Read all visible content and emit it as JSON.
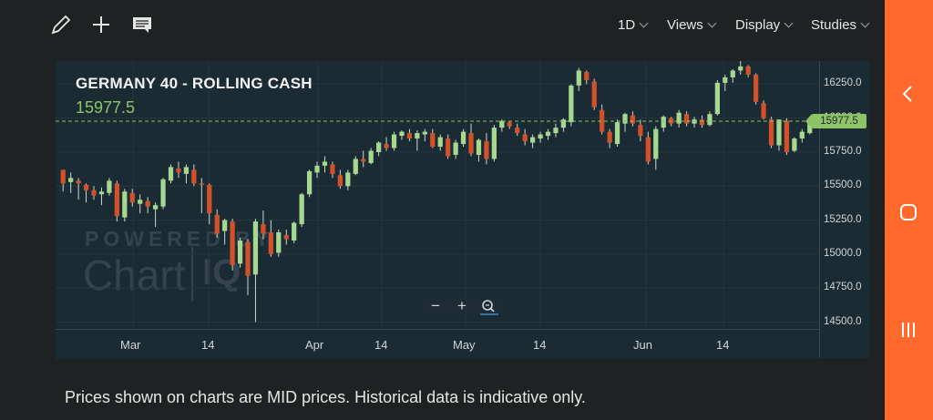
{
  "toolbar": {
    "icons": [
      "pencil-icon",
      "plus-icon",
      "comment-icon"
    ],
    "menus": [
      "1D",
      "Views",
      "Display",
      "Studies"
    ]
  },
  "chart": {
    "title": "GERMANY 40 - ROLLING CASH",
    "current_price": "15977.5",
    "price_tag": "15977.5",
    "watermark_top": "POWERED BY",
    "watermark_main": "Chart",
    "watermark_iq": "IQ",
    "zoom": {
      "minus": "−",
      "plus": "+"
    }
  },
  "chart_data": {
    "type": "candlestick",
    "title": "GERMANY 40 - ROLLING CASH",
    "y_ticks": [
      "16250.0",
      "16000.0",
      "15750.0",
      "15500.0",
      "15250.0",
      "15000.0",
      "14750.0",
      "14500.0"
    ],
    "x_ticks": [
      "Mar",
      "14",
      "Apr",
      "14",
      "May",
      "14",
      "Jun",
      "14"
    ],
    "ylim": [
      14450,
      16420
    ],
    "current_line": 15977.5,
    "candles": [
      [
        15620,
        15620,
        15460,
        15520
      ],
      [
        15530,
        15600,
        15450,
        15560
      ],
      [
        15540,
        15560,
        15400,
        15520
      ],
      [
        15510,
        15520,
        15380,
        15470
      ],
      [
        15470,
        15500,
        15400,
        15430
      ],
      [
        15440,
        15490,
        15360,
        15460
      ],
      [
        15450,
        15560,
        15430,
        15540
      ],
      [
        15520,
        15540,
        15240,
        15280
      ],
      [
        15270,
        15480,
        15240,
        15460
      ],
      [
        15450,
        15480,
        15350,
        15380
      ],
      [
        15370,
        15440,
        15300,
        15400
      ],
      [
        15390,
        15420,
        15300,
        15350
      ],
      [
        15330,
        15380,
        15200,
        15360
      ],
      [
        15350,
        15560,
        15330,
        15550
      ],
      [
        15540,
        15660,
        15520,
        15640
      ],
      [
        15630,
        15680,
        15560,
        15600
      ],
      [
        15590,
        15660,
        15520,
        15640
      ],
      [
        15620,
        15660,
        15500,
        15520
      ],
      [
        15520,
        15560,
        15300,
        15510
      ],
      [
        15510,
        15520,
        15220,
        15300
      ],
      [
        15290,
        15330,
        15120,
        15150
      ],
      [
        15170,
        15260,
        15070,
        15250
      ],
      [
        15240,
        15260,
        14880,
        14920
      ],
      [
        14930,
        15120,
        14900,
        15100
      ],
      [
        15090,
        15110,
        14700,
        14840
      ],
      [
        14850,
        15260,
        14500,
        15240
      ],
      [
        15220,
        15320,
        15110,
        15150
      ],
      [
        15160,
        15250,
        14980,
        15000
      ],
      [
        15010,
        15180,
        14980,
        15160
      ],
      [
        15140,
        15180,
        15070,
        15110
      ],
      [
        15100,
        15240,
        15080,
        15230
      ],
      [
        15220,
        15450,
        15200,
        15440
      ],
      [
        15440,
        15620,
        15420,
        15610
      ],
      [
        15600,
        15680,
        15560,
        15650
      ],
      [
        15650,
        15720,
        15600,
        15680
      ],
      [
        15660,
        15680,
        15560,
        15590
      ],
      [
        15580,
        15620,
        15480,
        15500
      ],
      [
        15500,
        15620,
        15470,
        15600
      ],
      [
        15590,
        15720,
        15580,
        15700
      ],
      [
        15700,
        15760,
        15640,
        15680
      ],
      [
        15670,
        15780,
        15660,
        15760
      ],
      [
        15750,
        15830,
        15720,
        15820
      ],
      [
        15810,
        15860,
        15760,
        15780
      ],
      [
        15780,
        15900,
        15760,
        15880
      ],
      [
        15870,
        15910,
        15840,
        15900
      ],
      [
        15890,
        15920,
        15830,
        15850
      ],
      [
        15850,
        15910,
        15760,
        15890
      ],
      [
        15880,
        15920,
        15830,
        15900
      ],
      [
        15890,
        15920,
        15780,
        15790
      ],
      [
        15790,
        15880,
        15760,
        15860
      ],
      [
        15850,
        15880,
        15700,
        15720
      ],
      [
        15730,
        15840,
        15700,
        15820
      ],
      [
        15810,
        15920,
        15790,
        15900
      ],
      [
        15890,
        15960,
        15720,
        15740
      ],
      [
        15730,
        15850,
        15680,
        15840
      ],
      [
        15830,
        15890,
        15660,
        15700
      ],
      [
        15700,
        15950,
        15680,
        15930
      ],
      [
        15930,
        15990,
        15900,
        15980
      ],
      [
        15970,
        15980,
        15920,
        15940
      ],
      [
        15930,
        15960,
        15870,
        15890
      ],
      [
        15880,
        15920,
        15800,
        15830
      ],
      [
        15820,
        15880,
        15780,
        15860
      ],
      [
        15850,
        15900,
        15820,
        15880
      ],
      [
        15870,
        15920,
        15840,
        15900
      ],
      [
        15890,
        15960,
        15860,
        15930
      ],
      [
        15930,
        16000,
        15900,
        15990
      ],
      [
        15970,
        16250,
        15940,
        16240
      ],
      [
        16240,
        16370,
        16200,
        16350
      ],
      [
        16340,
        16350,
        16250,
        16280
      ],
      [
        16270,
        16290,
        16060,
        16080
      ],
      [
        16060,
        16100,
        15880,
        15900
      ],
      [
        15900,
        15920,
        15780,
        15820
      ],
      [
        15810,
        15990,
        15790,
        15970
      ],
      [
        15960,
        16040,
        15900,
        16030
      ],
      [
        16020,
        16050,
        15940,
        15960
      ],
      [
        15950,
        15990,
        15830,
        15870
      ],
      [
        15860,
        15900,
        15660,
        15680
      ],
      [
        15700,
        15940,
        15620,
        15920
      ],
      [
        15930,
        16020,
        15900,
        16010
      ],
      [
        16000,
        16010,
        15940,
        15960
      ],
      [
        15960,
        16060,
        15930,
        16040
      ],
      [
        16030,
        16050,
        15940,
        15960
      ],
      [
        15960,
        16010,
        15930,
        15990
      ],
      [
        15990,
        16020,
        15930,
        15950
      ],
      [
        15950,
        16050,
        15940,
        16030
      ],
      [
        16030,
        16280,
        16020,
        16260
      ],
      [
        16260,
        16320,
        16200,
        16300
      ],
      [
        16300,
        16360,
        16260,
        16350
      ],
      [
        16350,
        16420,
        16320,
        16380
      ],
      [
        16380,
        16390,
        16300,
        16320
      ],
      [
        16320,
        16330,
        16100,
        16120
      ],
      [
        16110,
        16130,
        15990,
        16000
      ],
      [
        15990,
        16010,
        15780,
        15800
      ],
      [
        15800,
        15990,
        15760,
        15990
      ],
      [
        15980,
        16000,
        15730,
        15750
      ],
      [
        15760,
        15860,
        15750,
        15850
      ],
      [
        15850,
        15920,
        15820,
        15900
      ],
      [
        15890,
        16000,
        15880,
        15980
      ]
    ]
  },
  "footer": {
    "disclaimer": "Prices shown on charts are MID prices. Historical data is indicative only."
  },
  "navbar": {
    "icons": [
      "back-icon",
      "home-icon",
      "recent-apps-icon"
    ]
  }
}
